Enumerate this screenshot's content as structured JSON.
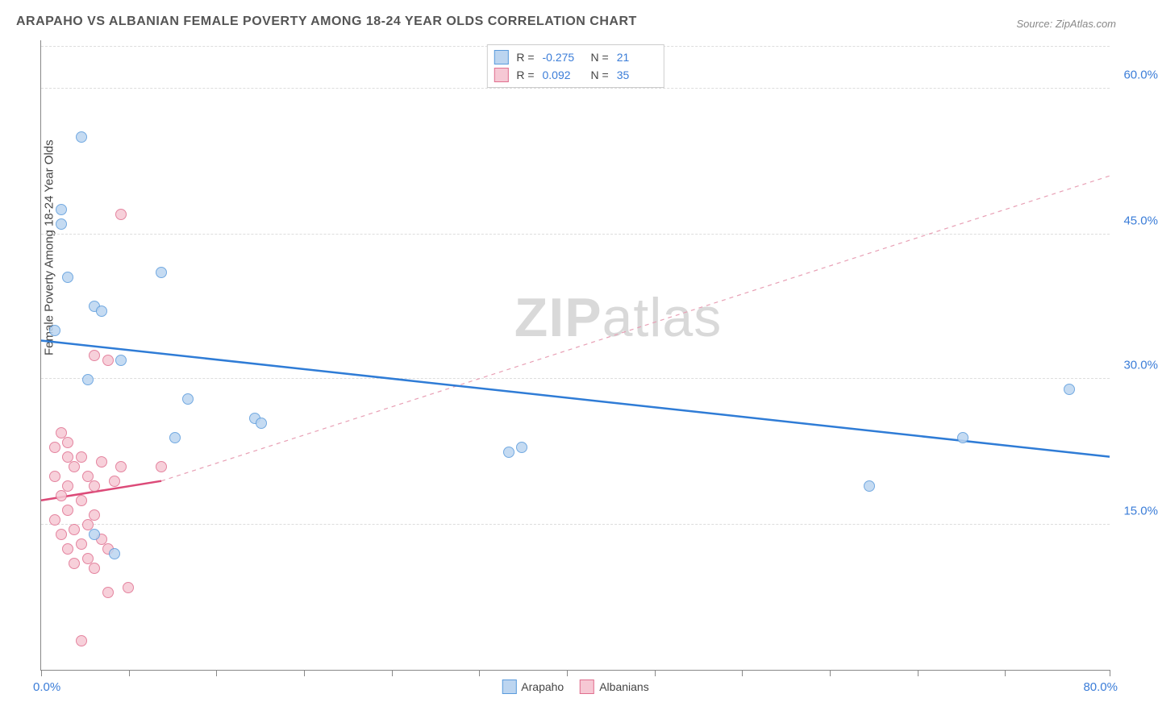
{
  "title": "ARAPAHO VS ALBANIAN FEMALE POVERTY AMONG 18-24 YEAR OLDS CORRELATION CHART",
  "source": "Source: ZipAtlas.com",
  "watermark": {
    "bold": "ZIP",
    "light": "atlas"
  },
  "chart": {
    "type": "scatter",
    "ylabel": "Female Poverty Among 18-24 Year Olds",
    "xlim": [
      0,
      80
    ],
    "ylim": [
      0,
      65
    ],
    "xticks_pct": [
      0,
      8.2,
      16.4,
      24.6,
      32.8,
      41,
      49.2,
      57.4,
      65.6,
      73.8,
      82,
      90.2,
      100
    ],
    "xlabel_min": "0.0%",
    "xlabel_max": "80.0%",
    "yticks": [
      {
        "v": 15,
        "label": "15.0%",
        "pct": 23.1
      },
      {
        "v": 30,
        "label": "30.0%",
        "pct": 46.2
      },
      {
        "v": 45,
        "label": "45.0%",
        "pct": 69.2
      },
      {
        "v": 60,
        "label": "60.0%",
        "pct": 92.3
      }
    ],
    "grid_color": "#dddddd",
    "background_color": "#ffffff",
    "marker_radius": 7,
    "series": [
      {
        "name": "Arapaho",
        "color_fill": "#bcd5f0",
        "color_stroke": "#5a9bdc",
        "R": "-0.275",
        "N": "21",
        "trend": {
          "x1": 0,
          "y1": 34,
          "x2": 80,
          "y2": 22,
          "stroke": "#2f7cd6",
          "width": 2.5,
          "dash": "none"
        },
        "trend_extrap": null,
        "points": [
          {
            "x": 3,
            "y": 55
          },
          {
            "x": 1.5,
            "y": 47.5
          },
          {
            "x": 1.5,
            "y": 46
          },
          {
            "x": 2,
            "y": 40.5
          },
          {
            "x": 9,
            "y": 41
          },
          {
            "x": 4,
            "y": 37.5
          },
          {
            "x": 4.5,
            "y": 37
          },
          {
            "x": 1,
            "y": 35
          },
          {
            "x": 6,
            "y": 32
          },
          {
            "x": 3.5,
            "y": 30
          },
          {
            "x": 11,
            "y": 28
          },
          {
            "x": 16,
            "y": 26
          },
          {
            "x": 10,
            "y": 24
          },
          {
            "x": 35,
            "y": 22.5
          },
          {
            "x": 16.5,
            "y": 25.5
          },
          {
            "x": 4,
            "y": 14
          },
          {
            "x": 5.5,
            "y": 12
          },
          {
            "x": 62,
            "y": 19
          },
          {
            "x": 69,
            "y": 24
          },
          {
            "x": 77,
            "y": 29
          },
          {
            "x": 36,
            "y": 23
          }
        ]
      },
      {
        "name": "Albanians",
        "color_fill": "#f6c8d4",
        "color_stroke": "#e06f8f",
        "R": "0.092",
        "N": "35",
        "trend": {
          "x1": 0,
          "y1": 17.5,
          "x2": 9,
          "y2": 19.5,
          "stroke": "#dc4a78",
          "width": 2.5,
          "dash": "none"
        },
        "trend_extrap": {
          "x1": 9,
          "y1": 19.5,
          "x2": 80,
          "y2": 51,
          "stroke": "#e8a0b5",
          "width": 1.2,
          "dash": "5,5"
        },
        "points": [
          {
            "x": 6,
            "y": 47
          },
          {
            "x": 4,
            "y": 32.5
          },
          {
            "x": 5,
            "y": 32
          },
          {
            "x": 1.5,
            "y": 24.5
          },
          {
            "x": 2,
            "y": 23.5
          },
          {
            "x": 1,
            "y": 23
          },
          {
            "x": 3,
            "y": 22
          },
          {
            "x": 2.5,
            "y": 21
          },
          {
            "x": 4.5,
            "y": 21.5
          },
          {
            "x": 6,
            "y": 21
          },
          {
            "x": 9,
            "y": 21
          },
          {
            "x": 3.5,
            "y": 20
          },
          {
            "x": 2,
            "y": 19
          },
          {
            "x": 4,
            "y": 19
          },
          {
            "x": 5.5,
            "y": 19.5
          },
          {
            "x": 1.5,
            "y": 18
          },
          {
            "x": 3,
            "y": 17.5
          },
          {
            "x": 2,
            "y": 16.5
          },
          {
            "x": 4,
            "y": 16
          },
          {
            "x": 1,
            "y": 15.5
          },
          {
            "x": 3.5,
            "y": 15
          },
          {
            "x": 2.5,
            "y": 14.5
          },
          {
            "x": 1.5,
            "y": 14
          },
          {
            "x": 4.5,
            "y": 13.5
          },
          {
            "x": 3,
            "y": 13
          },
          {
            "x": 2,
            "y": 12.5
          },
          {
            "x": 5,
            "y": 12.5
          },
          {
            "x": 3.5,
            "y": 11.5
          },
          {
            "x": 2.5,
            "y": 11
          },
          {
            "x": 4,
            "y": 10.5
          },
          {
            "x": 6.5,
            "y": 8.5
          },
          {
            "x": 5,
            "y": 8
          },
          {
            "x": 3,
            "y": 3
          },
          {
            "x": 1,
            "y": 20
          },
          {
            "x": 2,
            "y": 22
          }
        ]
      }
    ]
  },
  "legend_bottom": [
    {
      "label": "Arapaho",
      "fill": "#bcd5f0",
      "stroke": "#5a9bdc"
    },
    {
      "label": "Albanians",
      "fill": "#f6c8d4",
      "stroke": "#e06f8f"
    }
  ]
}
